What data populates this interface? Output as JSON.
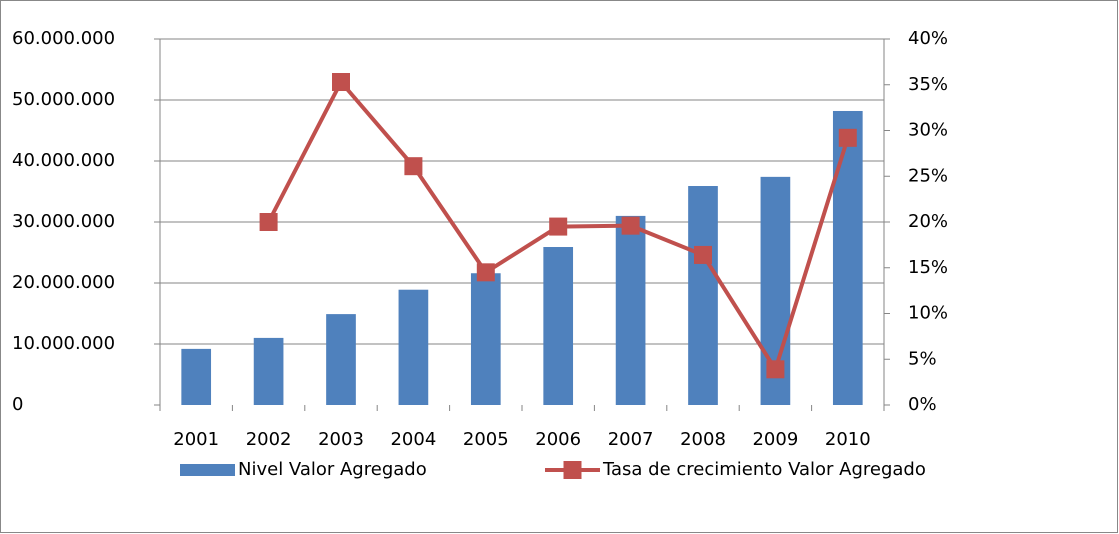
{
  "chart_data": {
    "type": "bar_line",
    "categories": [
      "2001",
      "2002",
      "2003",
      "2004",
      "2005",
      "2006",
      "2007",
      "2008",
      "2009",
      "2010"
    ],
    "series": [
      {
        "name": "Nivel Valor Agregado",
        "color": "#4f81bd",
        "type": "bar",
        "values": [
          9200000,
          11000000,
          14900000,
          18900000,
          21600000,
          25900000,
          31000000,
          35900000,
          37400000,
          48200000
        ]
      },
      {
        "name": "Tasa de crecimiento Valor Agregado",
        "color": "#c0504d",
        "type": "line",
        "axis": "y2",
        "values": [
          null,
          20,
          35.3,
          26.1,
          14.5,
          19.5,
          19.6,
          16.4,
          3.9,
          29.2
        ]
      }
    ],
    "ylim": [
      0,
      60000000
    ],
    "yticks": [
      0,
      {
        "value": 10000000,
        "label": "10.000.000"
      },
      {
        "value": 20000000,
        "label": "20.000.000"
      },
      {
        "value": 30000000,
        "label": "30.000.000"
      },
      {
        "value": 40000000,
        "label": "40.000.000"
      },
      {
        "value": 50000000,
        "label": "50.000.000"
      },
      {
        "value": 60000000,
        "label": "60.000.000"
      }
    ],
    "y2lim": [
      0,
      40
    ],
    "y2ticks": [
      {
        "value": 0,
        "label": "0%"
      },
      {
        "value": 5,
        "label": "5%"
      },
      {
        "value": 10,
        "label": "10%"
      },
      {
        "value": 15,
        "label": "15%"
      },
      {
        "value": 20,
        "label": "20%"
      },
      {
        "value": 25,
        "label": "25%"
      },
      {
        "value": 30,
        "label": "30%"
      },
      {
        "value": 35,
        "label": "35%"
      },
      {
        "value": 40,
        "label": "40%"
      }
    ],
    "grid": true,
    "legend": "bottom"
  }
}
